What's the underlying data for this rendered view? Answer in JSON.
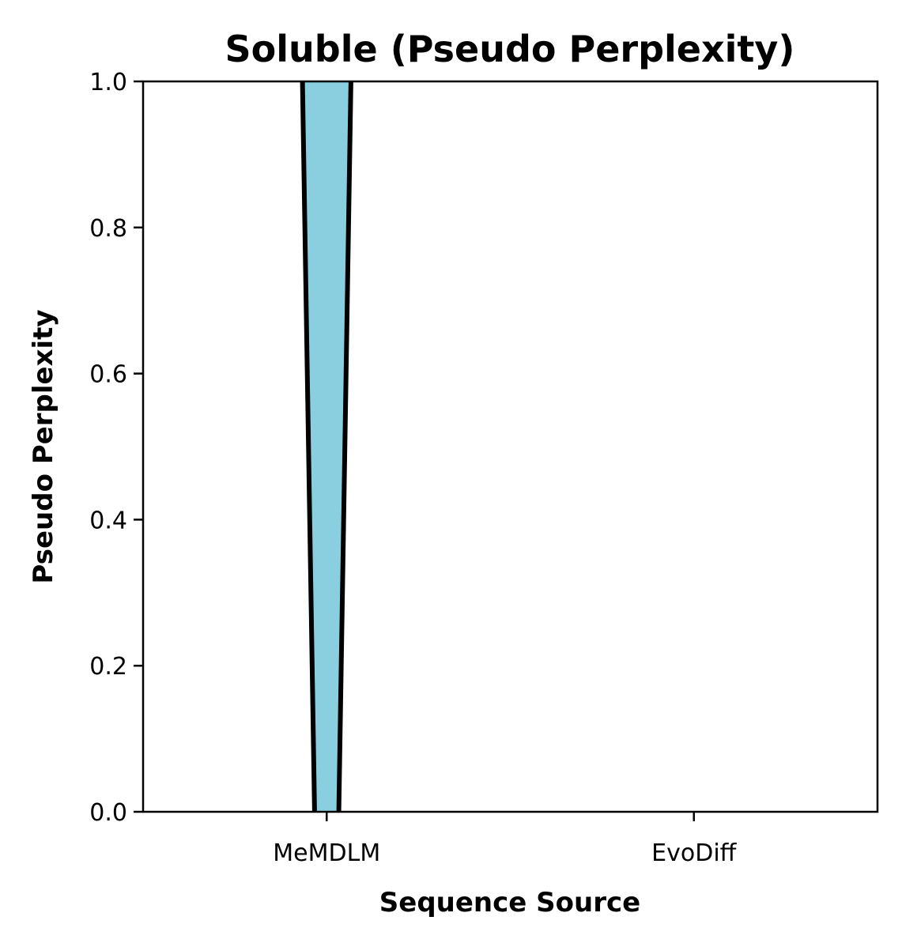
{
  "chart_data": {
    "type": "violin",
    "title": "Soluble (Pseudo Perplexity)",
    "xlabel": "Sequence Source",
    "ylabel": "Pseudo Perplexity",
    "categories": [
      "MeMDLM",
      "EvoDiff"
    ],
    "ylim": [
      0.0,
      1.0
    ],
    "yticks": [
      "0.0",
      "0.2",
      "0.4",
      "0.6",
      "0.8",
      "1.0"
    ],
    "grid": false,
    "series": [
      {
        "category": "MeMDLM",
        "color": "#89CFE0",
        "outline_color": "#000000",
        "visible_range": [
          0.0,
          1.0
        ],
        "half_width_at_ymin": 0.033,
        "half_width_at_ymax": 0.066
      },
      {
        "category": "EvoDiff",
        "color": "#89CFE0",
        "outline_color": "#000000",
        "visible_range": null
      }
    ]
  }
}
